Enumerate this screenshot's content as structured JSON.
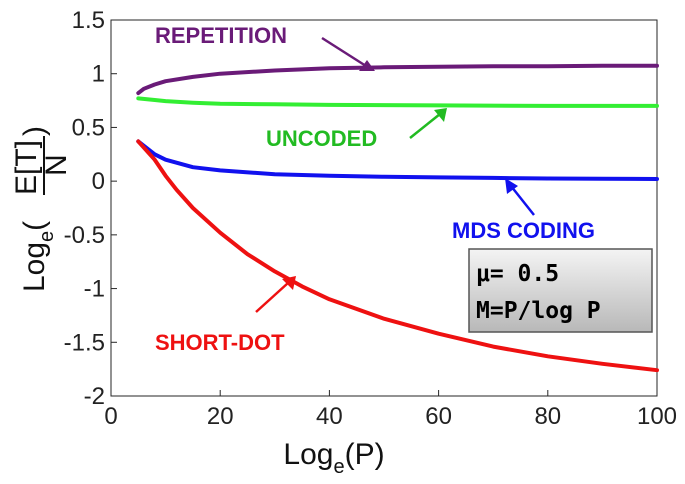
{
  "chart_data": {
    "type": "line",
    "xlabel": "Log",
    "xlabel_sub": "e",
    "xlabel_tail": "(P)",
    "ylabel_prefix": "Log",
    "ylabel_sub": "e",
    "ylabel_numer": "E[T]",
    "ylabel_denom": "N",
    "xlim": [
      0,
      100
    ],
    "ylim": [
      -2,
      1.5
    ],
    "xticks": [
      0,
      20,
      40,
      60,
      80,
      100
    ],
    "yticks": [
      1.5,
      1,
      0.5,
      0,
      -0.5,
      -1,
      -1.5,
      -2
    ],
    "grid": false,
    "series": [
      {
        "name": "REPETITION",
        "color": "#6a1b78",
        "x": [
          5,
          6,
          8,
          10,
          15,
          20,
          30,
          40,
          50,
          60,
          70,
          80,
          90,
          100
        ],
        "y": [
          0.82,
          0.86,
          0.9,
          0.93,
          0.97,
          1.0,
          1.03,
          1.05,
          1.06,
          1.065,
          1.07,
          1.07,
          1.075,
          1.075
        ]
      },
      {
        "name": "UNCODED",
        "color": "#33ee33",
        "x": [
          5,
          8,
          10,
          15,
          20,
          30,
          40,
          60,
          80,
          100
        ],
        "y": [
          0.77,
          0.755,
          0.745,
          0.73,
          0.72,
          0.715,
          0.71,
          0.705,
          0.7,
          0.7
        ]
      },
      {
        "name": "MDS CODING",
        "color": "#1111ee",
        "x": [
          5,
          8,
          10,
          15,
          20,
          30,
          40,
          50,
          60,
          70,
          80,
          90,
          100
        ],
        "y": [
          0.37,
          0.25,
          0.2,
          0.13,
          0.1,
          0.065,
          0.05,
          0.04,
          0.035,
          0.03,
          0.025,
          0.022,
          0.02
        ]
      },
      {
        "name": "SHORT-DOT",
        "color": "#ee1111",
        "x": [
          5,
          8,
          10,
          12,
          15,
          20,
          25,
          30,
          35,
          40,
          50,
          60,
          70,
          80,
          90,
          100
        ],
        "y": [
          0.37,
          0.2,
          0.05,
          -0.08,
          -0.25,
          -0.48,
          -0.68,
          -0.84,
          -0.98,
          -1.1,
          -1.28,
          -1.42,
          -1.54,
          -1.63,
          -1.7,
          -1.76
        ]
      }
    ],
    "annotations": [
      {
        "text": "REPETITION",
        "color": "#6a1b78",
        "target": [
          48,
          1.05
        ]
      },
      {
        "text": "UNCODED",
        "color": "#22bb22",
        "target": [
          62,
          0.71
        ]
      },
      {
        "text": "MDS CODING",
        "color": "#1111ee",
        "target": [
          72,
          0.03
        ]
      },
      {
        "text": "SHORT-DOT",
        "color": "#ee1111",
        "target": [
          34,
          -0.84
        ]
      }
    ],
    "legend_box": {
      "line1": "μ= 0.5",
      "line2": "M=P/log P"
    }
  }
}
